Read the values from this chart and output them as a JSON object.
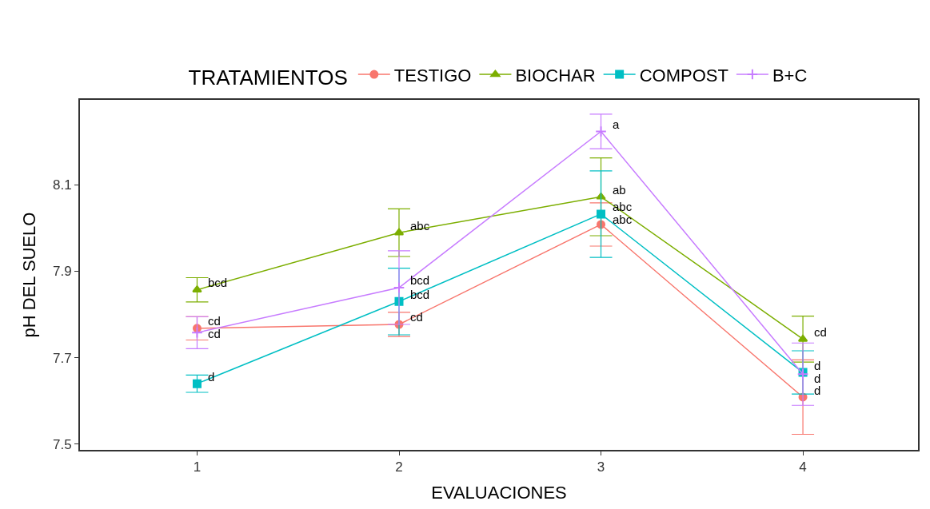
{
  "chart_data": {
    "type": "line",
    "xlabel": "EVALUACIONES",
    "ylabel": "pH DEL SUELO",
    "legend_title": "TRATAMIENTOS",
    "legend": "top",
    "x": [
      1,
      2,
      3,
      4
    ],
    "xlim": [
      0.42,
      4.57
    ],
    "xticks": [
      1,
      2,
      3,
      4
    ],
    "ylim": [
      7.487,
      8.296
    ],
    "yticks": [
      7.5,
      7.7,
      7.9,
      8.1
    ],
    "series": [
      {
        "name": "TESTIGO",
        "color": "#f8766d",
        "marker": "circle",
        "values": [
          7.768,
          7.777,
          8.008,
          7.609
        ],
        "errors": [
          0.027,
          0.028,
          0.05,
          0.086
        ]
      },
      {
        "name": "BIOCHAR",
        "color": "#7cae00",
        "marker": "triangle",
        "values": [
          7.857,
          7.989,
          8.072,
          7.743
        ],
        "errors": [
          0.028,
          0.055,
          0.09,
          0.053
        ]
      },
      {
        "name": "COMPOST",
        "color": "#00bfc4",
        "marker": "square",
        "values": [
          7.64,
          7.83,
          8.032,
          7.666
        ],
        "errors": [
          0.02,
          0.077,
          0.1,
          0.05
        ]
      },
      {
        "name": "B+C",
        "color": "#c77cff",
        "marker": "cross",
        "values": [
          7.758,
          7.862,
          8.223,
          7.662
        ],
        "errors": [
          0.037,
          0.085,
          0.04,
          0.072
        ]
      }
    ],
    "annotations": [
      {
        "text": "cd",
        "x": 1,
        "y": 7.768
      },
      {
        "text": "cd",
        "x": 2,
        "y": 7.777
      },
      {
        "text": "abc",
        "x": 3,
        "y": 8.008
      },
      {
        "text": "d",
        "x": 4,
        "y": 7.609
      },
      {
        "text": "bcd",
        "x": 1,
        "y": 7.857
      },
      {
        "text": "abc",
        "x": 2,
        "y": 7.989
      },
      {
        "text": "ab",
        "x": 3,
        "y": 8.072
      },
      {
        "text": "cd",
        "x": 4,
        "y": 7.743
      },
      {
        "text": "d",
        "x": 1,
        "y": 7.64
      },
      {
        "text": "bcd",
        "x": 2,
        "y": 7.83
      },
      {
        "text": "abc",
        "x": 3,
        "y": 8.032
      },
      {
        "text": "d",
        "x": 4,
        "y": 7.666
      },
      {
        "text": "cd",
        "x": 1,
        "y": 7.758
      },
      {
        "text": "bcd",
        "x": 2,
        "y": 7.862
      },
      {
        "text": "a",
        "x": 3,
        "y": 8.223
      },
      {
        "text": "d",
        "x": 4,
        "y": 7.662
      }
    ]
  }
}
